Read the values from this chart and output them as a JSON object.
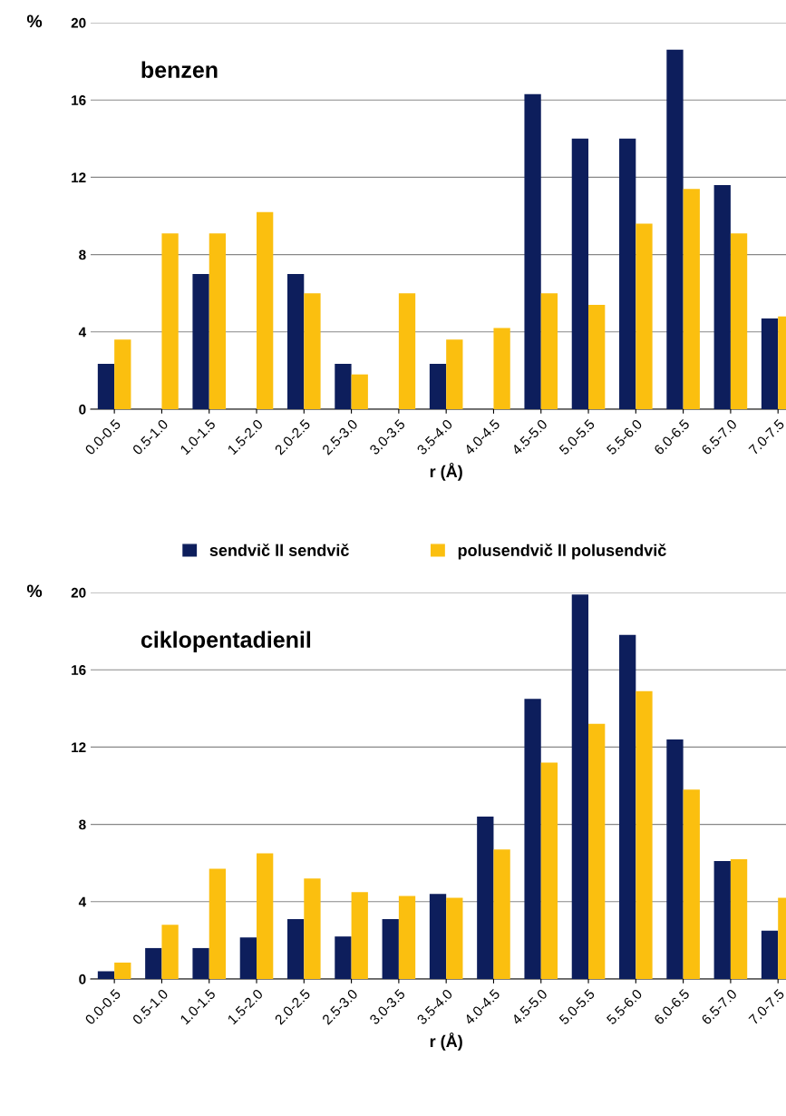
{
  "chart_data": [
    {
      "type": "bar",
      "title": "benzen",
      "xlabel": "r (Å)",
      "ylabel": "%",
      "categories": [
        "0.0-0.5",
        "0.5-1.0",
        "1.0-1.5",
        "1.5-2.0",
        "2.0-2.5",
        "2.5-3.0",
        "3.0-3.5",
        "3.5-4.0",
        "4.0-4.5",
        "4.5-5.0",
        "5.0-5.5",
        "5.5-6.0",
        "6.0-6.5",
        "6.5-7.0",
        "7.0-7.5"
      ],
      "series": [
        {
          "name": "sendvič ll sendvič",
          "color": "#0d1e5c",
          "values": [
            2.35,
            0,
            7.0,
            0,
            7.0,
            2.35,
            0,
            2.35,
            0,
            16.3,
            14.0,
            14.0,
            18.6,
            11.6,
            4.7
          ]
        },
        {
          "name": "polusendvič ll polusendvič",
          "color": "#fbbf0f",
          "values": [
            3.6,
            9.1,
            9.1,
            10.2,
            6.0,
            1.8,
            6.0,
            3.6,
            4.2,
            6.0,
            5.4,
            9.6,
            11.4,
            9.1,
            4.8
          ]
        }
      ],
      "ylim": [
        0,
        20
      ],
      "yticks": [
        0,
        4,
        8,
        12,
        16,
        20
      ],
      "grid": "y",
      "legend": "bottom"
    },
    {
      "type": "bar",
      "title": "ciklopentadienil",
      "xlabel": "r (Å)",
      "ylabel": "%",
      "categories": [
        "0.0-0.5",
        "0.5-1.0",
        "1.0-1.5",
        "1.5-2.0",
        "2.0-2.5",
        "2.5-3.0",
        "3.0-3.5",
        "3.5-4.0",
        "4.0-4.5",
        "4.5-5.0",
        "5.0-5.5",
        "5.5-6.0",
        "6.0-6.5",
        "6.5-7.0",
        "7.0-7.5"
      ],
      "series": [
        {
          "color": "#0d1e5c",
          "values": [
            0.4,
            1.6,
            1.6,
            2.15,
            3.1,
            2.2,
            3.1,
            4.4,
            8.4,
            14.5,
            19.9,
            17.8,
            12.4,
            6.1,
            2.5
          ]
        },
        {
          "color": "#fbbf0f",
          "values": [
            0.85,
            2.8,
            5.7,
            6.5,
            5.2,
            4.5,
            4.3,
            4.2,
            6.7,
            11.2,
            13.2,
            14.9,
            9.8,
            6.2,
            4.2
          ]
        }
      ],
      "ylim": [
        0,
        20
      ],
      "yticks": [
        0,
        4,
        8,
        12,
        16,
        20
      ],
      "grid": "y"
    }
  ]
}
